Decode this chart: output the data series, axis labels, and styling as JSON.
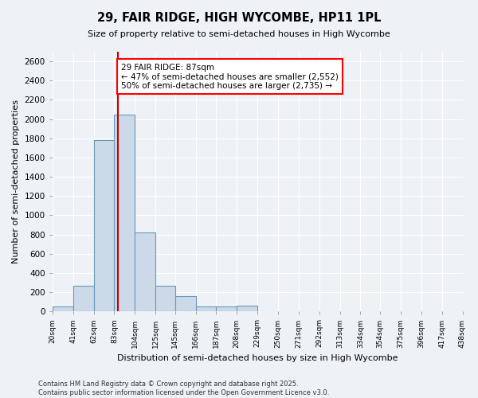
{
  "title": "29, FAIR RIDGE, HIGH WYCOMBE, HP11 1PL",
  "subtitle": "Size of property relative to semi-detached houses in High Wycombe",
  "xlabel": "Distribution of semi-detached houses by size in High Wycombe",
  "ylabel": "Number of semi-detached properties",
  "property_size": 87,
  "annotation_line1": "29 FAIR RIDGE: 87sqm",
  "annotation_line2": "← 47% of semi-detached houses are smaller (2,552)",
  "annotation_line3": "50% of semi-detached houses are larger (2,735) →",
  "footer_line1": "Contains HM Land Registry data © Crown copyright and database right 2025.",
  "footer_line2": "Contains public sector information licensed under the Open Government Licence v3.0.",
  "bar_color": "#ccd9e8",
  "bar_edge_color": "#6699bb",
  "line_color": "#cc0000",
  "background_color": "#eef2f7",
  "grid_color": "#ffffff",
  "ylim": [
    0,
    2700
  ],
  "bin_edges": [
    20,
    41,
    62,
    83,
    104,
    125,
    145,
    166,
    187,
    208,
    229,
    250,
    271,
    292,
    313,
    334,
    354,
    375,
    396,
    417,
    438
  ],
  "bar_heights": [
    50,
    270,
    1780,
    2050,
    820,
    270,
    160,
    50,
    50,
    60,
    0,
    0,
    0,
    0,
    0,
    0,
    0,
    0,
    0,
    0
  ],
  "tick_labels": [
    "20sqm",
    "41sqm",
    "62sqm",
    "83sqm",
    "104sqm",
    "125sqm",
    "145sqm",
    "166sqm",
    "187sqm",
    "208sqm",
    "229sqm",
    "250sqm",
    "271sqm",
    "292sqm",
    "313sqm",
    "334sqm",
    "354sqm",
    "375sqm",
    "396sqm",
    "417sqm",
    "438sqm"
  ]
}
